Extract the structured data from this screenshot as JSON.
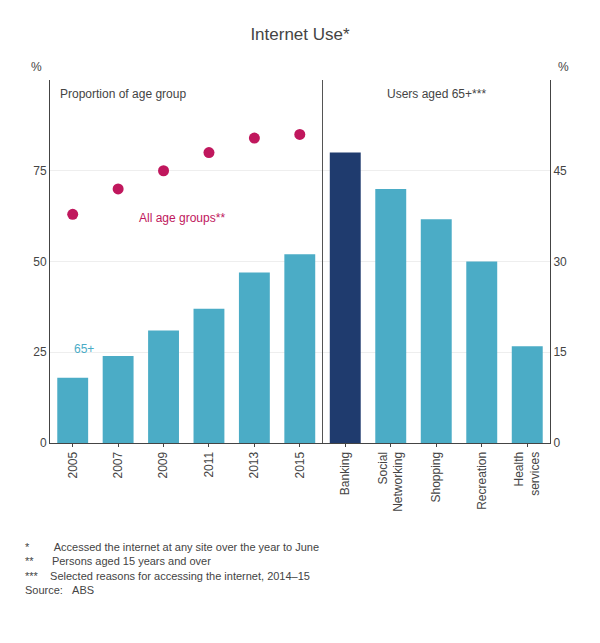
{
  "title": "Internet Use*",
  "annotations": [
    "*        Accessed the internet at any site over the year to June",
    "**      Persons aged 15 years and over",
    "***    Selected reasons for accessing the internet, 2014–15",
    "Source:   ABS"
  ],
  "chart_data": [
    {
      "type": "bar",
      "title": "Proportion of age group",
      "ylabel": "%",
      "categories": [
        "2005",
        "2007",
        "2009",
        "2011",
        "2013",
        "2015"
      ],
      "series": [
        {
          "name": "65+",
          "type": "bar",
          "color": "#4BACC6",
          "values": [
            18,
            24,
            31,
            37,
            47,
            52
          ]
        },
        {
          "name": "All age groups**",
          "type": "scatter",
          "color": "#C0175D",
          "values": [
            63,
            70,
            75,
            80,
            84,
            85
          ]
        }
      ],
      "ylim": [
        0,
        100
      ],
      "yticks": [
        0,
        25,
        50,
        75
      ],
      "grid": true
    },
    {
      "type": "bar",
      "title": "Users aged 65+***",
      "ylabel": "%",
      "categories": [
        "Banking",
        "Social\nNetworking",
        "Shopping",
        "Recreation",
        "Health\nservices"
      ],
      "values": [
        48,
        42,
        37,
        30,
        16
      ],
      "colors": [
        "#1F3B6E",
        "#4BACC6",
        "#4BACC6",
        "#4BACC6",
        "#4BACC6"
      ],
      "ylim": [
        0,
        60
      ],
      "yticks": [
        0,
        15,
        30,
        45
      ],
      "grid": true
    }
  ]
}
